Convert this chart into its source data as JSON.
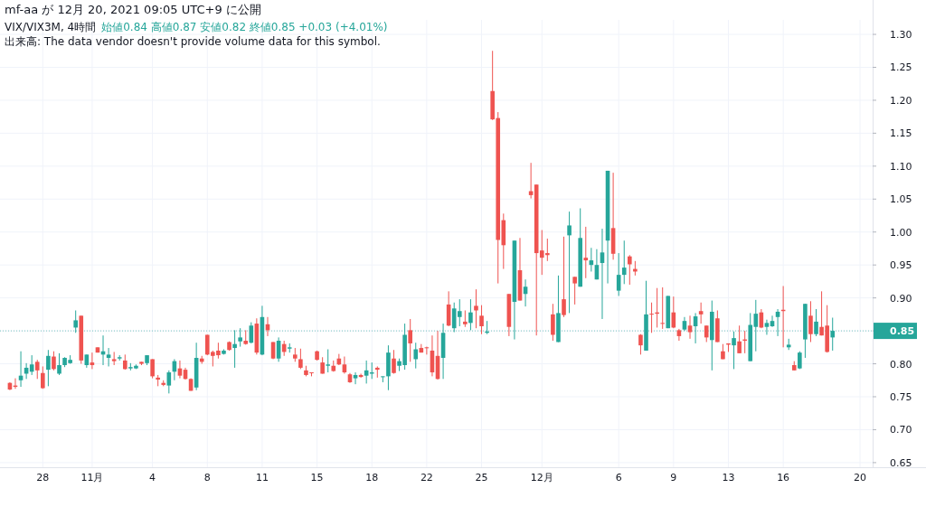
{
  "chart_data": {
    "type": "candlestick",
    "title": "VIX/VIX3M, 4時間",
    "subtitle": "始値0.84 高値0.87 安値0.82 終値0.85 +0.03 (+4.01%)",
    "annotations": [
      "mf-aa が 12月 20, 2021 09:05 UTC+9 に公開",
      "出来高: The data vendor doesn't provide volume data for this symbol."
    ],
    "categories": [
      null,
      null,
      null,
      null,
      null,
      null,
      "28",
      null,
      null,
      null,
      null,
      null,
      null,
      null,
      null,
      "11月",
      null,
      null,
      null,
      null,
      null,
      null,
      null,
      null,
      null,
      null,
      "4",
      null,
      null,
      null,
      null,
      null,
      null,
      null,
      null,
      null,
      "8",
      null,
      null,
      null,
      null,
      null,
      null,
      null,
      null,
      null,
      "11",
      null,
      null,
      null,
      null,
      null,
      null,
      null,
      null,
      null,
      "15",
      null,
      null,
      null,
      null,
      null,
      null,
      null,
      null,
      null,
      "18",
      null,
      null,
      null,
      null,
      null,
      null,
      null,
      null,
      null,
      "22",
      null,
      null,
      null,
      null,
      null,
      null,
      null,
      null,
      null,
      "25",
      null,
      null,
      null,
      null,
      null,
      null,
      null,
      null,
      null,
      null,
      "12月",
      null,
      null,
      null,
      null,
      null,
      null,
      null,
      null,
      null,
      null,
      null,
      null,
      null,
      "6",
      null,
      null,
      null,
      null,
      null,
      null,
      null,
      null,
      null,
      "9",
      null,
      null,
      null,
      null,
      null,
      null,
      null,
      null,
      null,
      "13",
      null,
      null,
      null,
      null,
      null,
      null,
      null,
      null,
      null,
      "16",
      null,
      null,
      null,
      null,
      null,
      null,
      null,
      null,
      null,
      null,
      null,
      null,
      null,
      "20"
    ],
    "ohlc": [
      [
        0.771,
        0.772,
        0.76,
        0.761
      ],
      [
        0.767,
        0.778,
        0.762,
        0.765
      ],
      [
        0.775,
        0.819,
        0.765,
        0.782
      ],
      [
        0.785,
        0.801,
        0.777,
        0.794
      ],
      [
        0.788,
        0.813,
        0.783,
        0.799
      ],
      [
        0.803,
        0.806,
        0.777,
        0.79
      ],
      [
        0.786,
        0.796,
        0.762,
        0.763
      ],
      [
        0.791,
        0.821,
        0.766,
        0.812
      ],
      [
        0.811,
        0.819,
        0.79,
        0.792
      ],
      [
        0.785,
        0.816,
        0.783,
        0.798
      ],
      [
        0.798,
        0.81,
        0.795,
        0.809
      ],
      [
        0.801,
        0.813,
        0.8,
        0.806
      ],
      [
        0.855,
        0.881,
        0.847,
        0.866
      ],
      [
        0.873,
        0.873,
        0.8,
        0.805
      ],
      [
        0.798,
        0.814,
        0.794,
        0.814
      ],
      [
        0.802,
        0.817,
        0.792,
        0.798
      ],
      [
        0.825,
        0.825,
        0.817,
        0.817
      ],
      [
        0.814,
        0.843,
        0.798,
        0.819
      ],
      [
        0.809,
        0.824,
        0.796,
        0.814
      ],
      [
        0.807,
        0.818,
        0.798,
        0.804
      ],
      [
        0.808,
        0.813,
        0.805,
        0.81
      ],
      [
        0.805,
        0.814,
        0.791,
        0.792
      ],
      [
        0.793,
        0.801,
        0.79,
        0.795
      ],
      [
        0.793,
        0.799,
        0.792,
        0.797
      ],
      [
        0.803,
        0.803,
        0.798,
        0.8
      ],
      [
        0.801,
        0.813,
        0.798,
        0.813
      ],
      [
        0.807,
        0.807,
        0.778,
        0.781
      ],
      [
        0.779,
        0.783,
        0.766,
        0.776
      ],
      [
        0.771,
        0.775,
        0.766,
        0.768
      ],
      [
        0.767,
        0.79,
        0.755,
        0.787
      ],
      [
        0.788,
        0.807,
        0.775,
        0.804
      ],
      [
        0.793,
        0.805,
        0.778,
        0.782
      ],
      [
        0.791,
        0.794,
        0.776,
        0.777
      ],
      [
        0.777,
        0.778,
        0.759,
        0.759
      ],
      [
        0.764,
        0.832,
        0.76,
        0.809
      ],
      [
        0.808,
        0.812,
        0.8,
        0.803
      ],
      [
        0.844,
        0.844,
        0.813,
        0.814
      ],
      [
        0.818,
        0.82,
        0.796,
        0.812
      ],
      [
        0.82,
        0.832,
        0.808,
        0.813
      ],
      [
        0.815,
        0.822,
        0.814,
        0.82
      ],
      [
        0.833,
        0.834,
        0.82,
        0.821
      ],
      [
        0.824,
        0.851,
        0.794,
        0.83
      ],
      [
        0.834,
        0.854,
        0.826,
        0.84
      ],
      [
        0.835,
        0.851,
        0.829,
        0.83
      ],
      [
        0.832,
        0.863,
        0.831,
        0.858
      ],
      [
        0.861,
        0.869,
        0.814,
        0.817
      ],
      [
        0.814,
        0.888,
        0.813,
        0.871
      ],
      [
        0.86,
        0.871,
        0.842,
        0.851
      ],
      [
        0.833,
        0.833,
        0.807,
        0.808
      ],
      [
        0.808,
        0.84,
        0.803,
        0.835
      ],
      [
        0.83,
        0.835,
        0.812,
        0.818
      ],
      [
        0.823,
        0.831,
        0.817,
        0.825
      ],
      [
        0.814,
        0.824,
        0.803,
        0.808
      ],
      [
        0.807,
        0.823,
        0.792,
        0.794
      ],
      [
        0.79,
        0.797,
        0.781,
        0.783
      ],
      [
        0.787,
        0.787,
        0.781,
        0.786
      ],
      [
        0.819,
        0.82,
        0.805,
        0.806
      ],
      [
        0.802,
        0.81,
        0.785,
        0.785
      ],
      [
        0.797,
        0.822,
        0.787,
        0.799
      ],
      [
        0.797,
        0.805,
        0.788,
        0.789
      ],
      [
        0.808,
        0.815,
        0.798,
        0.799
      ],
      [
        0.799,
        0.811,
        0.785,
        0.787
      ],
      [
        0.784,
        0.786,
        0.771,
        0.772
      ],
      [
        0.778,
        0.787,
        0.769,
        0.783
      ],
      [
        0.783,
        0.785,
        0.779,
        0.78
      ],
      [
        0.782,
        0.805,
        0.77,
        0.79
      ],
      [
        0.785,
        0.802,
        0.777,
        0.787
      ],
      [
        0.794,
        0.796,
        0.779,
        0.791
      ],
      [
        0.78,
        0.781,
        0.772,
        0.781
      ],
      [
        0.781,
        0.828,
        0.76,
        0.817
      ],
      [
        0.808,
        0.821,
        0.785,
        0.786
      ],
      [
        0.797,
        0.808,
        0.789,
        0.804
      ],
      [
        0.798,
        0.861,
        0.791,
        0.844
      ],
      [
        0.851,
        0.868,
        0.803,
        0.831
      ],
      [
        0.807,
        0.832,
        0.793,
        0.822
      ],
      [
        0.824,
        0.83,
        0.817,
        0.817
      ],
      [
        0.825,
        0.826,
        0.814,
        0.824
      ],
      [
        0.82,
        0.843,
        0.781,
        0.787
      ],
      [
        0.812,
        0.85,
        0.776,
        0.777
      ],
      [
        0.809,
        0.861,
        0.777,
        0.847
      ],
      [
        0.89,
        0.91,
        0.857,
        0.858
      ],
      [
        0.854,
        0.893,
        0.848,
        0.884
      ],
      [
        0.871,
        0.898,
        0.857,
        0.88
      ],
      [
        0.864,
        0.881,
        0.856,
        0.86
      ],
      [
        0.862,
        0.898,
        0.851,
        0.878
      ],
      [
        0.888,
        0.913,
        0.854,
        0.881
      ],
      [
        0.873,
        0.889,
        0.845,
        0.857
      ],
      [
        0.847,
        0.865,
        0.845,
        0.849
      ],
      [
        1.214,
        1.275,
        1.17,
        1.171
      ],
      [
        1.173,
        1.182,
        0.922,
        0.988
      ],
      [
        1.018,
        1.028,
        0.944,
        0.98
      ],
      [
        0.906,
        0.906,
        0.842,
        0.856
      ],
      [
        0.894,
        0.987,
        0.837,
        0.987
      ],
      [
        0.942,
        0.991,
        0.896,
        0.896
      ],
      [
        0.906,
        0.928,
        0.887,
        0.917
      ],
      [
        1.062,
        1.105,
        1.051,
        1.056
      ],
      [
        1.072,
        1.072,
        0.843,
        0.968
      ],
      [
        0.972,
        1.003,
        0.935,
        0.961
      ],
      [
        0.968,
        0.99,
        0.956,
        0.965
      ],
      [
        0.875,
        0.891,
        0.835,
        0.844
      ],
      [
        0.833,
        0.934,
        0.833,
        0.877
      ],
      [
        0.898,
        0.993,
        0.871,
        0.874
      ],
      [
        0.995,
        1.031,
        0.877,
        1.01
      ],
      [
        0.932,
        0.932,
        0.89,
        0.922
      ],
      [
        0.917,
        1.036,
        0.917,
        0.991
      ],
      [
        0.961,
        1.008,
        0.93,
        0.957
      ],
      [
        0.95,
        0.976,
        0.94,
        0.957
      ],
      [
        0.928,
        0.974,
        0.928,
        0.95
      ],
      [
        0.953,
        1.005,
        0.868,
        0.969
      ],
      [
        0.987,
        1.093,
        0.922,
        1.093
      ],
      [
        1.006,
        1.09,
        0.958,
        0.967
      ],
      [
        0.911,
        0.968,
        0.903,
        0.935
      ],
      [
        0.935,
        0.987,
        0.921,
        0.946
      ],
      [
        0.963,
        0.965,
        0.92,
        0.951
      ],
      [
        0.944,
        0.956,
        0.934,
        0.94
      ],
      [
        0.844,
        0.845,
        0.814,
        0.828
      ],
      [
        0.82,
        0.926,
        0.82,
        0.875
      ],
      [
        0.876,
        0.893,
        0.847,
        0.875
      ],
      [
        0.878,
        0.915,
        0.855,
        0.876
      ],
      [
        0.862,
        0.916,
        0.853,
        0.861
      ],
      [
        0.854,
        0.903,
        0.854,
        0.903
      ],
      [
        0.878,
        0.902,
        0.854,
        0.855
      ],
      [
        0.851,
        0.853,
        0.835,
        0.842
      ],
      [
        0.852,
        0.871,
        0.85,
        0.865
      ],
      [
        0.858,
        0.873,
        0.838,
        0.848
      ],
      [
        0.857,
        0.877,
        0.831,
        0.872
      ],
      [
        0.88,
        0.893,
        0.861,
        0.875
      ],
      [
        0.858,
        0.858,
        0.833,
        0.84
      ],
      [
        0.836,
        0.896,
        0.79,
        0.879
      ],
      [
        0.869,
        0.881,
        0.833,
        0.833
      ],
      [
        0.819,
        0.83,
        0.807,
        0.807
      ],
      [
        0.831,
        0.831,
        0.818,
        0.829
      ],
      [
        0.828,
        0.849,
        0.792,
        0.839
      ],
      [
        0.834,
        0.858,
        0.816,
        0.816
      ],
      [
        0.837,
        0.85,
        0.816,
        0.835
      ],
      [
        0.804,
        0.877,
        0.804,
        0.859
      ],
      [
        0.856,
        0.897,
        0.819,
        0.876
      ],
      [
        0.878,
        0.883,
        0.854,
        0.855
      ],
      [
        0.856,
        0.867,
        0.844,
        0.862
      ],
      [
        0.857,
        0.873,
        0.856,
        0.865
      ],
      [
        0.871,
        0.883,
        0.842,
        0.879
      ],
      [
        0.882,
        0.918,
        0.825,
        0.88
      ],
      [
        0.825,
        0.838,
        0.821,
        0.829
      ],
      [
        0.798,
        0.804,
        0.79,
        0.79
      ],
      [
        0.793,
        0.819,
        0.792,
        0.817
      ],
      [
        0.837,
        0.891,
        0.809,
        0.891
      ],
      [
        0.873,
        0.895,
        0.833,
        0.845
      ],
      [
        0.845,
        0.883,
        0.842,
        0.864
      ],
      [
        0.856,
        0.91,
        0.843,
        0.843
      ],
      [
        0.858,
        0.889,
        0.817,
        0.818
      ],
      [
        0.84,
        0.87,
        0.82,
        0.85
      ],
      null,
      null,
      null,
      null,
      null
    ],
    "colors": [
      "#ef5350",
      "#ef5350",
      "#26a69a",
      "#26a69a",
      "#26a69a",
      "#ef5350",
      "#ef5350",
      "#26a69a",
      "#ef5350",
      "#26a69a",
      "#26a69a",
      "#26a69a",
      "#26a69a",
      "#ef5350",
      "#26a69a",
      "#ef5350",
      "#ef5350",
      "#26a69a",
      "#26a69a",
      "#ef5350",
      "#26a69a",
      "#ef5350",
      "#26a69a",
      "#26a69a",
      "#ef5350",
      "#26a69a",
      "#ef5350",
      "#ef5350",
      "#ef5350",
      "#26a69a",
      "#26a69a",
      "#ef5350",
      "#ef5350",
      "#ef5350",
      "#26a69a",
      "#ef5350",
      "#ef5350",
      "#ef5350",
      "#ef5350",
      "#26a69a",
      "#ef5350",
      "#26a69a",
      "#26a69a",
      "#ef5350",
      "#26a69a",
      "#ef5350",
      "#26a69a",
      "#ef5350",
      "#ef5350",
      "#26a69a",
      "#ef5350",
      "#26a69a",
      "#ef5350",
      "#ef5350",
      "#ef5350",
      "#ef5350",
      "#ef5350",
      "#ef5350",
      "#26a69a",
      "#ef5350",
      "#ef5350",
      "#ef5350",
      "#ef5350",
      "#26a69a",
      "#ef5350",
      "#26a69a",
      "#26a69a",
      "#ef5350",
      "#26a69a",
      "#26a69a",
      "#ef5350",
      "#26a69a",
      "#26a69a",
      "#ef5350",
      "#26a69a",
      "#ef5350",
      "#ef5350",
      "#ef5350",
      "#ef5350",
      "#26a69a",
      "#ef5350",
      "#26a69a",
      "#26a69a",
      "#ef5350",
      "#26a69a",
      "#ef5350",
      "#ef5350",
      "#26a69a",
      "#ef5350",
      "#ef5350",
      "#ef5350",
      "#ef5350",
      "#26a69a",
      "#ef5350",
      "#26a69a",
      "#ef5350",
      "#ef5350",
      "#ef5350",
      "#ef5350",
      "#ef5350",
      "#26a69a",
      "#ef5350",
      "#26a69a",
      "#ef5350",
      "#26a69a",
      "#ef5350",
      "#26a69a",
      "#26a69a",
      "#26a69a",
      "#26a69a",
      "#ef5350",
      "#26a69a",
      "#26a69a",
      "#ef5350",
      "#ef5350",
      "#ef5350",
      "#26a69a",
      "#ef5350",
      "#ef5350",
      "#ef5350",
      "#26a69a",
      "#ef5350",
      "#ef5350",
      "#26a69a",
      "#ef5350",
      "#26a69a",
      "#ef5350",
      "#ef5350",
      "#26a69a",
      "#ef5350",
      "#ef5350",
      "#ef5350",
      "#26a69a",
      "#ef5350",
      "#ef5350",
      "#26a69a",
      "#26a69a",
      "#ef5350",
      "#26a69a",
      "#26a69a",
      "#26a69a",
      "#ef5350",
      "#26a69a",
      "#ef5350",
      "#26a69a",
      "#26a69a",
      "#ef5350",
      "#26a69a",
      "#ef5350",
      "#ef5350",
      "#26a69a",
      null,
      null,
      null,
      null,
      null
    ],
    "ylim": [
      0.643,
      1.322
    ],
    "yticks": [
      {
        "value": 0.65,
        "label": "0.65"
      },
      {
        "value": 0.7,
        "label": "0.70"
      },
      {
        "value": 0.75,
        "label": "0.75"
      },
      {
        "value": 0.8,
        "label": "0.80"
      },
      {
        "value": 0.85,
        "label": null
      },
      {
        "value": 0.9,
        "label": "0.90"
      },
      {
        "value": 0.95,
        "label": "0.95"
      },
      {
        "value": 1.0,
        "label": "1.00"
      },
      {
        "value": 1.05,
        "label": "1.05"
      },
      {
        "value": 1.1,
        "label": "1.10"
      },
      {
        "value": 1.15,
        "label": "1.15"
      },
      {
        "value": 1.2,
        "label": "1.20"
      },
      {
        "value": 1.25,
        "label": "1.25"
      },
      {
        "value": 1.3,
        "label": "1.30"
      }
    ],
    "ref_lines": [
      {
        "axis": "y",
        "value": 0.85,
        "label": "0.85",
        "color": "#26a69a",
        "line_style": "dotted"
      }
    ],
    "grid": true
  }
}
